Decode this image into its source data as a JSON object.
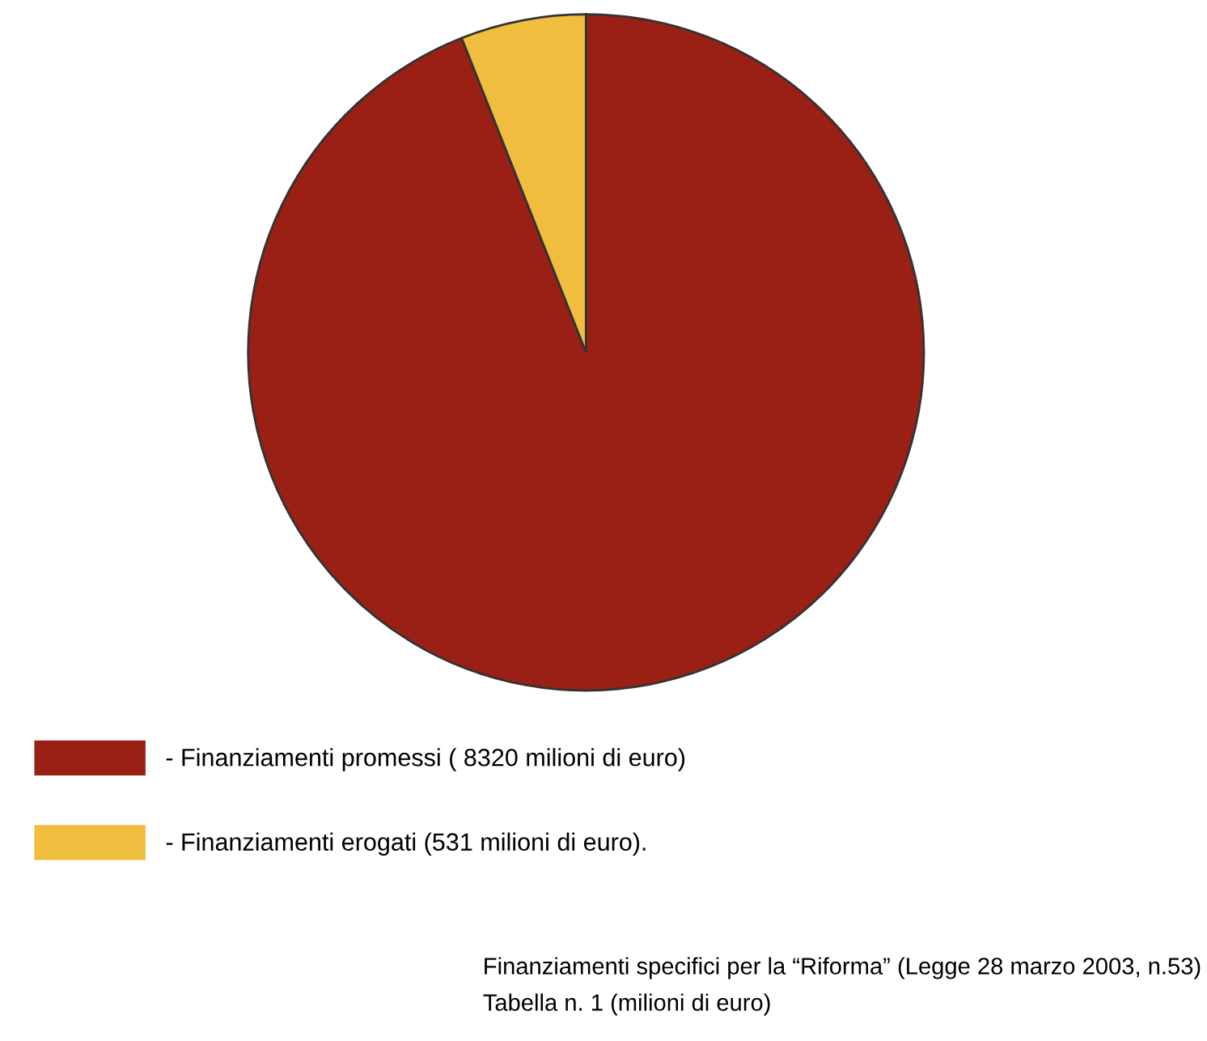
{
  "chart_data": {
    "type": "pie",
    "categories": [
      "- Finanziamenti promessi ( 8320 milioni di euro)",
      "- Finanziamenti erogati (531 milioni di euro)."
    ],
    "values": [
      8320,
      531
    ],
    "colors": [
      "#9a2016",
      "#f0bd3e"
    ],
    "legend": "bottom left",
    "annotations": [
      "Finanziamenti specifici per la “Riforma” (Legge 28 marzo 2003, n.53)",
      "Tabella n. 1 (milioni di euro)"
    ]
  }
}
